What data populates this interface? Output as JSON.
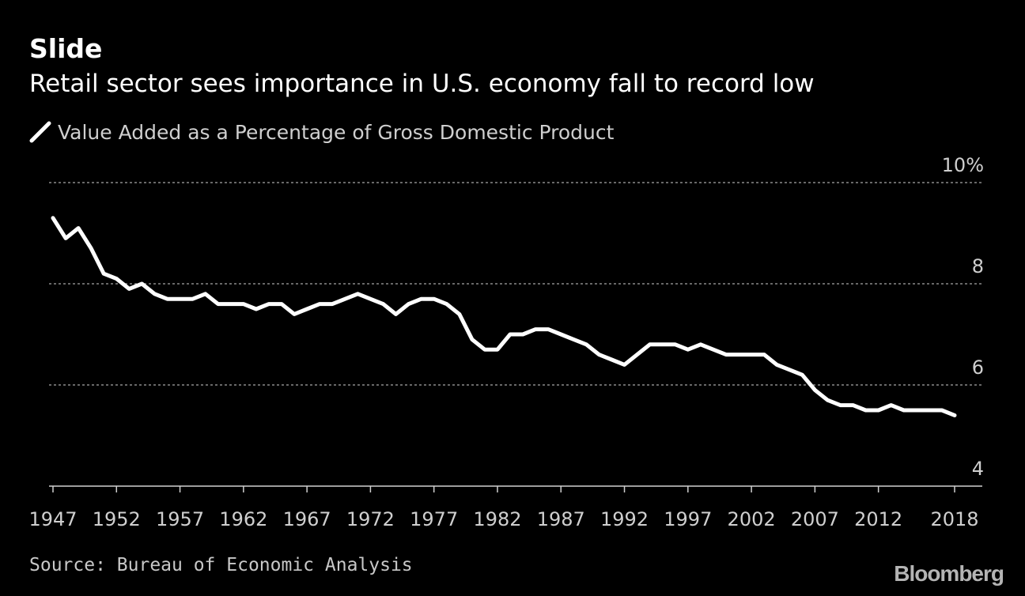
{
  "header": {
    "title": "Slide",
    "subtitle": "Retail sector sees importance in U.S. economy fall to record low"
  },
  "footer": {
    "source": "Source: Bureau of Economic Analysis",
    "brand": "Bloomberg"
  },
  "colors": {
    "background": "#000000",
    "line": "#ffffff",
    "grid": "#8a8a8a",
    "axis_text": "#cfcfcf"
  },
  "chart_data": {
    "type": "line",
    "title": "Slide",
    "subtitle": "Retail sector sees importance in U.S. economy fall to record low",
    "legend_position": "top-left",
    "grid": true,
    "xlim": [
      1947,
      2018
    ],
    "ylim": [
      4,
      10
    ],
    "y_ticks": [
      {
        "value": 10,
        "label": "10%"
      },
      {
        "value": 8,
        "label": "8"
      },
      {
        "value": 6,
        "label": "6"
      },
      {
        "value": 4,
        "label": "4"
      }
    ],
    "x_ticks": [
      {
        "value": 1947,
        "label": "1947"
      },
      {
        "value": 1952,
        "label": "1952"
      },
      {
        "value": 1957,
        "label": "1957"
      },
      {
        "value": 1962,
        "label": "1962"
      },
      {
        "value": 1967,
        "label": "1967"
      },
      {
        "value": 1972,
        "label": "1972"
      },
      {
        "value": 1977,
        "label": "1977"
      },
      {
        "value": 1982,
        "label": "1982"
      },
      {
        "value": 1987,
        "label": "1987"
      },
      {
        "value": 1992,
        "label": "1992"
      },
      {
        "value": 1997,
        "label": "1997"
      },
      {
        "value": 2002,
        "label": "2002"
      },
      {
        "value": 2007,
        "label": "2007"
      },
      {
        "value": 2012,
        "label": "2012"
      },
      {
        "value": 2018,
        "label": "2018"
      }
    ],
    "series": [
      {
        "name": "Value Added as a Percentage of Gross Domestic Product",
        "color": "#ffffff",
        "x": [
          1947,
          1948,
          1949,
          1950,
          1951,
          1952,
          1953,
          1954,
          1955,
          1956,
          1957,
          1958,
          1959,
          1960,
          1961,
          1962,
          1963,
          1964,
          1965,
          1966,
          1967,
          1968,
          1969,
          1970,
          1971,
          1972,
          1973,
          1974,
          1975,
          1976,
          1977,
          1978,
          1979,
          1980,
          1981,
          1982,
          1983,
          1984,
          1985,
          1986,
          1987,
          1988,
          1989,
          1990,
          1991,
          1992,
          1993,
          1994,
          1995,
          1996,
          1997,
          1998,
          1999,
          2000,
          2001,
          2002,
          2003,
          2004,
          2005,
          2006,
          2007,
          2008,
          2009,
          2010,
          2011,
          2012,
          2013,
          2014,
          2015,
          2016,
          2017,
          2018
        ],
        "y": [
          9.3,
          8.9,
          9.1,
          8.7,
          8.2,
          8.1,
          7.9,
          8.0,
          7.8,
          7.7,
          7.7,
          7.7,
          7.8,
          7.6,
          7.6,
          7.6,
          7.5,
          7.6,
          7.6,
          7.4,
          7.5,
          7.6,
          7.6,
          7.7,
          7.8,
          7.7,
          7.6,
          7.4,
          7.6,
          7.7,
          7.7,
          7.6,
          7.4,
          6.9,
          6.7,
          6.7,
          7.0,
          7.0,
          7.1,
          7.1,
          7.0,
          6.9,
          6.8,
          6.6,
          6.5,
          6.4,
          6.6,
          6.8,
          6.8,
          6.8,
          6.7,
          6.8,
          6.7,
          6.6,
          6.6,
          6.6,
          6.6,
          6.4,
          6.3,
          6.2,
          5.9,
          5.7,
          5.6,
          5.6,
          5.5,
          5.5,
          5.6,
          5.5,
          5.5,
          5.5,
          5.5,
          5.4
        ]
      }
    ]
  }
}
